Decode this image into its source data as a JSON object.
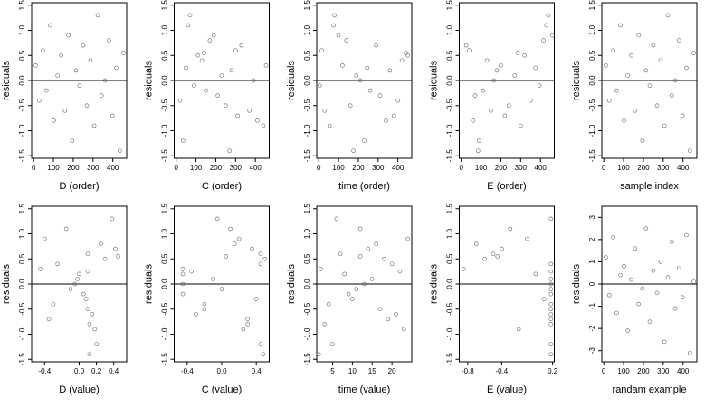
{
  "chart_data": [
    {
      "type": "scatter",
      "xlabel": "D (order)",
      "ylabel": "residuals",
      "xlim": [
        -10,
        470
      ],
      "ylim": [
        -1.55,
        1.55
      ],
      "xticks": [
        0,
        100,
        200,
        300,
        400
      ],
      "yticks": [
        -1.5,
        {
          "value": -1,
          "label": "-1.0"
        },
        -0.5,
        {
          "value": 0,
          "label": "0.0"
        },
        0.5,
        {
          "value": 1,
          "label": "1.0"
        },
        1.5
      ],
      "hline": 0,
      "x": [
        10,
        28,
        47,
        65,
        84,
        102,
        121,
        139,
        158,
        176,
        195,
        213,
        232,
        250,
        269,
        287,
        306,
        324,
        343,
        361,
        380,
        398,
        417,
        435,
        454
      ],
      "y": [
        0.3,
        -0.4,
        0.6,
        -0.2,
        1.1,
        -0.8,
        0.1,
        0.5,
        -0.6,
        0.9,
        -1.2,
        0.2,
        -0.1,
        0.7,
        -0.5,
        0.4,
        -0.9,
        1.3,
        -0.3,
        0.0,
        0.8,
        -0.7,
        0.25,
        -1.4,
        0.55
      ]
    },
    {
      "type": "scatter",
      "xlabel": "C (order)",
      "ylabel": "residuals",
      "xlim": [
        -10,
        470
      ],
      "ylim": [
        -1.55,
        1.55
      ],
      "xticks": [
        0,
        100,
        200,
        300,
        400
      ],
      "yticks": [
        -1.5,
        {
          "value": -1,
          "label": "-1.0"
        },
        -0.5,
        {
          "value": 0,
          "label": "0.0"
        },
        0.5,
        {
          "value": 1,
          "label": "1.0"
        },
        1.5
      ],
      "hline": 0,
      "x": [
        454,
        20,
        300,
        150,
        60,
        410,
        230,
        110,
        370,
        190,
        35,
        280,
        90,
        330,
        250,
        130,
        440,
        70,
        210,
        390,
        170,
        310,
        50,
        270,
        140
      ],
      "y": [
        0.3,
        -0.4,
        0.6,
        -0.2,
        1.1,
        -0.8,
        0.1,
        0.5,
        -0.6,
        0.9,
        -1.2,
        0.2,
        -0.1,
        0.7,
        -0.5,
        0.4,
        -0.9,
        1.3,
        -0.3,
        0.0,
        0.8,
        -0.7,
        0.25,
        -1.4,
        0.55
      ]
    },
    {
      "type": "scatter",
      "xlabel": "time (order)",
      "ylabel": "residuals",
      "xlim": [
        -10,
        470
      ],
      "ylim": [
        -1.55,
        1.55
      ],
      "xticks": [
        0,
        100,
        200,
        300,
        400
      ],
      "yticks": [
        -1.5,
        {
          "value": -1,
          "label": "-1.0"
        },
        -0.5,
        {
          "value": 0,
          "label": "0.0"
        },
        0.5,
        {
          "value": 1,
          "label": "1.0"
        },
        1.5
      ],
      "hline": 0,
      "x": [
        120,
        400,
        15,
        260,
        75,
        340,
        190,
        450,
        30,
        100,
        230,
        360,
        5,
        290,
        160,
        420,
        55,
        80,
        310,
        210,
        140,
        380,
        245,
        175,
        440
      ],
      "y": [
        0.3,
        -0.4,
        0.6,
        -0.2,
        1.1,
        -0.8,
        0.1,
        0.5,
        -0.6,
        0.9,
        -1.2,
        0.2,
        -0.1,
        0.7,
        -0.5,
        0.4,
        -0.9,
        1.3,
        -0.3,
        0.0,
        0.8,
        -0.7,
        0.25,
        -1.4,
        0.55
      ]
    },
    {
      "type": "scatter",
      "xlabel": "E (order)",
      "ylabel": "residuals",
      "xlim": [
        -10,
        470
      ],
      "ylim": [
        -1.55,
        1.55
      ],
      "xticks": [
        0,
        100,
        200,
        300,
        400
      ],
      "yticks": [
        -1.5,
        {
          "value": -1,
          "label": "-1.0"
        },
        -0.5,
        {
          "value": 0,
          "label": "0.0"
        },
        0.5,
        {
          "value": 1,
          "label": "1.0"
        },
        1.5
      ],
      "hline": 0,
      "x": [
        200,
        350,
        40,
        110,
        430,
        60,
        270,
        320,
        150,
        460,
        90,
        180,
        395,
        25,
        240,
        130,
        300,
        440,
        70,
        165,
        415,
        220,
        375,
        85,
        285
      ],
      "y": [
        0.3,
        -0.4,
        0.6,
        -0.2,
        1.1,
        -0.8,
        0.1,
        0.5,
        -0.6,
        0.9,
        -1.2,
        0.2,
        -0.1,
        0.7,
        -0.5,
        0.4,
        -0.9,
        1.3,
        -0.3,
        0.0,
        0.8,
        -0.7,
        0.25,
        -1.4,
        0.55
      ]
    },
    {
      "type": "scatter",
      "xlabel": "sample index",
      "ylabel": "residuals",
      "xlim": [
        -10,
        470
      ],
      "ylim": [
        -1.55,
        1.55
      ],
      "xticks": [
        0,
        100,
        200,
        300,
        400
      ],
      "yticks": [
        -1.5,
        {
          "value": -1,
          "label": "-1.0"
        },
        -0.5,
        {
          "value": 0,
          "label": "0.0"
        },
        0.5,
        {
          "value": 1,
          "label": "1.0"
        },
        1.5
      ],
      "hline": 0,
      "x": [
        10,
        28,
        47,
        65,
        84,
        102,
        121,
        139,
        158,
        176,
        195,
        213,
        232,
        250,
        269,
        287,
        306,
        324,
        343,
        361,
        380,
        398,
        417,
        435,
        454
      ],
      "y": [
        0.3,
        -0.4,
        0.6,
        -0.2,
        1.1,
        -0.8,
        0.1,
        0.5,
        -0.6,
        0.9,
        -1.2,
        0.2,
        -0.1,
        0.7,
        -0.5,
        0.4,
        -0.9,
        1.3,
        -0.3,
        0.0,
        0.8,
        -0.7,
        0.25,
        -1.4,
        0.55
      ]
    },
    {
      "type": "scatter",
      "xlabel": "D (value)",
      "ylabel": "residuals",
      "xlim": [
        -0.55,
        0.55
      ],
      "ylim": [
        -1.55,
        1.55
      ],
      "xticks": [
        -0.4,
        {
          "value": 0,
          "label": "0.0"
        },
        0.2,
        0.4
      ],
      "yticks": [
        -1.5,
        {
          "value": -1,
          "label": "-1.0"
        },
        -0.5,
        {
          "value": 0,
          "label": "0.0"
        },
        0.5,
        {
          "value": 1,
          "label": "1.0"
        },
        1.5
      ],
      "hline": 0,
      "x": [
        -0.45,
        -0.3,
        0.1,
        0.05,
        -0.15,
        0.12,
        -0.02,
        0.3,
        0.15,
        -0.4,
        0.2,
        0.0,
        -0.1,
        0.42,
        0.1,
        -0.25,
        0.18,
        0.38,
        0.08,
        -0.05,
        0.25,
        -0.35,
        0.1,
        0.12,
        0.45
      ],
      "y": [
        0.3,
        -0.4,
        0.6,
        -0.2,
        1.1,
        -0.8,
        0.1,
        0.5,
        -0.6,
        0.9,
        -1.2,
        0.2,
        -0.1,
        0.7,
        -0.5,
        0.4,
        -0.9,
        1.3,
        -0.3,
        0.0,
        0.8,
        -0.7,
        0.25,
        -1.4,
        0.55
      ]
    },
    {
      "type": "scatter",
      "xlabel": "C (value)",
      "ylabel": "residuals",
      "xlim": [
        -0.55,
        0.55
      ],
      "ylim": [
        -1.55,
        1.55
      ],
      "xticks": [
        -0.4,
        {
          "value": 0,
          "label": "0.0"
        },
        0.4
      ],
      "yticks": [
        -1.5,
        {
          "value": -1,
          "label": "-1.0"
        },
        -0.5,
        {
          "value": 0,
          "label": "0.0"
        },
        0.5,
        {
          "value": 1,
          "label": "1.0"
        },
        1.5
      ],
      "hline": 0,
      "x": [
        -0.45,
        -0.2,
        0.45,
        -0.45,
        0.1,
        0.3,
        -0.1,
        0.5,
        -0.3,
        0.2,
        0.45,
        -0.45,
        0.0,
        0.35,
        -0.2,
        0.45,
        0.25,
        -0.05,
        0.4,
        -0.45,
        0.15,
        0.3,
        -0.35,
        0.48,
        0.05
      ],
      "y": [
        0.3,
        -0.4,
        0.6,
        -0.2,
        1.1,
        -0.8,
        0.1,
        0.5,
        -0.6,
        0.9,
        -1.2,
        0.2,
        -0.1,
        0.7,
        -0.5,
        0.4,
        -0.9,
        1.3,
        -0.3,
        0.0,
        0.8,
        -0.7,
        0.25,
        -1.4,
        0.55
      ]
    },
    {
      "type": "scatter",
      "xlabel": "time (value)",
      "ylabel": "residuals",
      "xlim": [
        1,
        25
      ],
      "ylim": [
        -1.55,
        1.55
      ],
      "xticks": [
        5,
        10,
        15,
        20
      ],
      "yticks": [
        -1.5,
        {
          "value": -1,
          "label": "-1.0"
        },
        -0.5,
        {
          "value": 0,
          "label": "0.0"
        },
        0.5,
        {
          "value": 1,
          "label": "1.0"
        },
        1.5
      ],
      "hline": 0,
      "x": [
        2,
        4,
        7,
        9,
        12,
        3,
        15,
        18,
        21,
        24,
        5,
        8,
        11,
        14,
        17,
        20,
        23,
        6,
        10,
        13,
        16,
        19,
        22,
        1.5,
        12
      ],
      "y": [
        0.3,
        -0.4,
        0.6,
        -0.2,
        1.1,
        -0.8,
        0.1,
        0.5,
        -0.6,
        0.9,
        -1.2,
        0.2,
        -0.1,
        0.7,
        -0.5,
        0.4,
        -0.9,
        1.3,
        -0.3,
        0.0,
        0.8,
        -0.7,
        0.25,
        -1.4,
        0.55
      ]
    },
    {
      "type": "scatter",
      "xlabel": "E (value)",
      "ylabel": "residuals",
      "xlim": [
        -0.9,
        0.22
      ],
      "ylim": [
        -1.55,
        1.55
      ],
      "xticks": [
        -0.8,
        -0.4,
        0.2
      ],
      "yticks": [
        -1.5,
        {
          "value": -1,
          "label": "-1.0"
        },
        -0.5,
        {
          "value": 0,
          "label": "0.0"
        },
        0.5,
        {
          "value": 1,
          "label": "1.0"
        },
        1.5
      ],
      "hline": 0,
      "x": [
        -0.85,
        0.18,
        -0.5,
        0.18,
        -0.3,
        0.18,
        0.18,
        -0.6,
        0.18,
        -0.1,
        0.18,
        0.0,
        0.18,
        -0.4,
        0.18,
        0.18,
        -0.2,
        0.18,
        0.1,
        0.18,
        -0.7,
        0.18,
        0.18,
        0.18,
        -0.45
      ],
      "y": [
        0.3,
        -0.4,
        0.6,
        -0.2,
        1.1,
        -0.8,
        0.1,
        0.5,
        -0.6,
        0.9,
        -1.2,
        0.2,
        -0.1,
        0.7,
        -0.5,
        0.4,
        -0.9,
        1.3,
        -0.3,
        0.0,
        0.8,
        -0.7,
        0.25,
        -1.4,
        0.55
      ]
    },
    {
      "type": "scatter",
      "xlabel": "randam example",
      "ylabel": "residuals",
      "xlim": [
        -10,
        470
      ],
      "ylim": [
        -3.5,
        3.5
      ],
      "xticks": [
        0,
        100,
        200,
        300,
        400
      ],
      "yticks": [
        -3,
        -2,
        -1,
        0,
        1,
        2,
        3
      ],
      "hline": 0,
      "x": [
        10,
        28,
        47,
        65,
        84,
        102,
        121,
        139,
        158,
        176,
        195,
        213,
        232,
        250,
        269,
        287,
        306,
        324,
        343,
        361,
        380,
        398,
        417,
        435,
        454
      ],
      "y": [
        1.2,
        -0.5,
        2.1,
        -1.3,
        0.4,
        0.8,
        -2.1,
        0.2,
        1.6,
        -0.9,
        -0.2,
        2.5,
        -1.7,
        0.6,
        -0.4,
        1.0,
        -2.6,
        0.3,
        1.9,
        -1.1,
        0.7,
        -0.6,
        2.2,
        -3.1,
        0.1
      ]
    }
  ]
}
